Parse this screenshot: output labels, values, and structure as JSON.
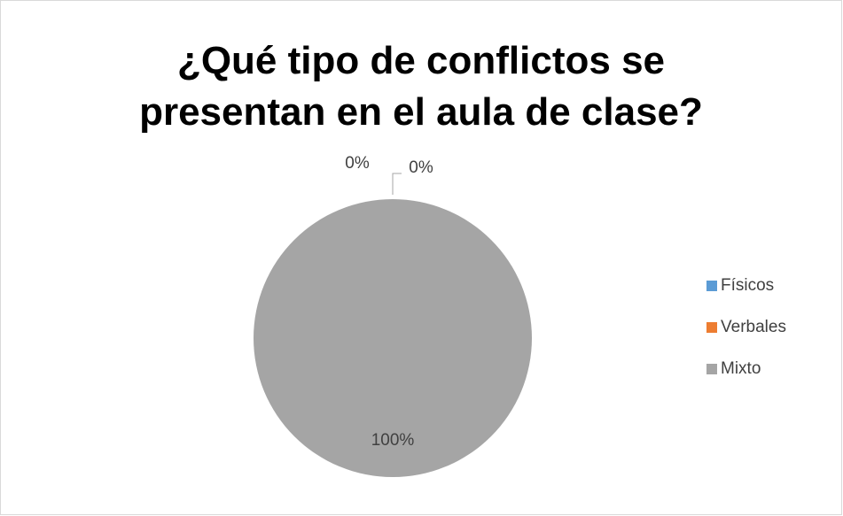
{
  "chart_data": {
    "type": "pie",
    "title": "¿Qué tipo de conflictos se presentan en el aula de clase?",
    "categories": [
      "Físicos",
      "Verbales",
      "Mixto"
    ],
    "values": [
      0,
      0,
      100
    ],
    "value_labels": [
      "0%",
      "0%",
      "100%"
    ],
    "colors": [
      "#5b9bd5",
      "#ed7d31",
      "#a5a5a5"
    ],
    "legend": "right"
  }
}
